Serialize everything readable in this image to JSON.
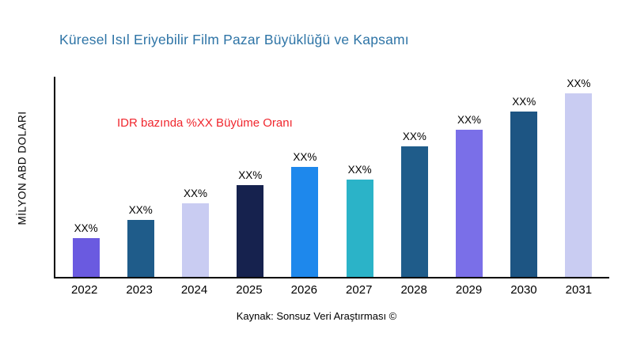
{
  "title": "Küresel Isıl Eriyebilir Film Pazar Büyüklüğü ve Kapsamı",
  "y_axis_label": "MİLYON ABD DOLARI",
  "annotation": "IDR bazında %XX Büyüme Oranı",
  "source": "Kaynak: Sonsuz Veri Araştırması ©",
  "colors": {
    "title_text": "#2e74a6",
    "annotation_text": "#f0262d",
    "axis": "#000000"
  },
  "chart_data": {
    "type": "bar",
    "title": "Küresel Isıl Eriyebilir Film Pazar Büyüklüğü ve Kapsamı",
    "xlabel": "",
    "ylabel": "MİLYON ABD DOLARI",
    "categories": [
      "2022",
      "2023",
      "2024",
      "2025",
      "2026",
      "2027",
      "2028",
      "2029",
      "2030",
      "2031"
    ],
    "values": [
      21,
      31,
      40,
      50,
      60,
      53,
      71,
      80,
      90,
      100
    ],
    "ylim": [
      0,
      110
    ],
    "value_unit": "relative (bars labeled XX%, no numeric axis shown)",
    "bar_labels": [
      "XX%",
      "XX%",
      "XX%",
      "XX%",
      "XX%",
      "XX%",
      "XX%",
      "XX%",
      "XX%",
      "XX%"
    ],
    "bar_colors": [
      "#6a5ae0",
      "#1f5c8a",
      "#c9ccf2",
      "#16224e",
      "#1e88ec",
      "#2bb3c8",
      "#1f5c8a",
      "#7a6fe8",
      "#1d5583",
      "#c9ccf2"
    ],
    "grid": false,
    "legend": false,
    "annotations": [
      "IDR bazında %XX Büyüme Oranı"
    ],
    "source_caption": "Kaynak: Sonsuz Veri Araştırması ©"
  }
}
